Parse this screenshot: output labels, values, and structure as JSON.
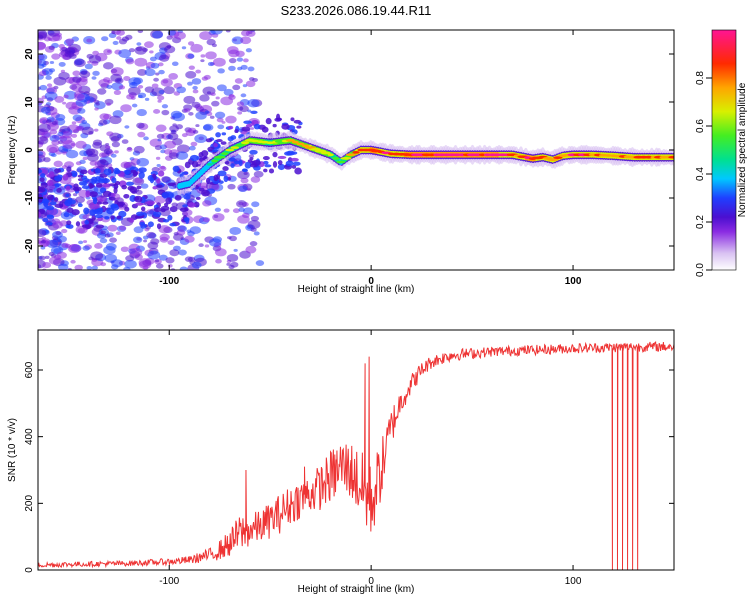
{
  "figure_title": "S233.2026.086.19.44.R11",
  "colors": {
    "snr_line": "#ee3333",
    "colormap": [
      "#ffffff",
      "#d9c2f2",
      "#8a2be2",
      "#4b0fd0",
      "#1f3fff",
      "#00c8ff",
      "#00e090",
      "#44ee22",
      "#d8f000",
      "#ffa500",
      "#ff2a00",
      "#ff1493"
    ]
  },
  "chart_data": [
    {
      "type": "heatmap",
      "title": "",
      "xlabel": "Height of straight line (km)",
      "ylabel": "Frequency (Hz)",
      "xlim": [
        -165,
        150
      ],
      "ylim": [
        -25,
        25
      ],
      "xticks": [
        -100,
        0,
        100
      ],
      "xtick_labels": [
        "-100",
        "0",
        "100"
      ],
      "yticks": [
        -20,
        -10,
        0,
        10,
        20
      ],
      "ytick_labels": [
        "-20",
        "-10",
        "0",
        "10",
        "20"
      ],
      "colorbar": {
        "label": "Normalized spectral amplitude",
        "range": [
          0.0,
          1.0
        ],
        "ticks": [
          0.0,
          0.2,
          0.4,
          0.6,
          0.8
        ],
        "tick_labels": [
          "0.0",
          "0.2",
          "0.4",
          "0.6",
          "0.8"
        ]
      },
      "ridge": {
        "description_free_points": true,
        "x": [
          -100,
          -90,
          -80,
          -70,
          -60,
          -50,
          -40,
          -30,
          -20,
          -15,
          -10,
          -5,
          0,
          10,
          20,
          40,
          60,
          70,
          80,
          85,
          90,
          95,
          100,
          110,
          120,
          130,
          150
        ],
        "frequency": [
          -8,
          -7,
          -3,
          0,
          2,
          1.5,
          2,
          0.5,
          -1,
          -2.5,
          -1,
          0,
          0,
          -0.8,
          -1,
          -1,
          -1,
          -1,
          -1.8,
          -1.5,
          -2,
          -1.2,
          -1,
          -1,
          -1.2,
          -1.5,
          -1.5
        ],
        "amplitude": [
          0.4,
          0.45,
          0.5,
          0.55,
          0.65,
          0.6,
          0.7,
          0.75,
          0.6,
          0.5,
          0.7,
          0.8,
          0.9,
          0.85,
          0.9,
          0.95,
          0.9,
          0.85,
          0.9,
          0.85,
          0.8,
          0.75,
          0.85,
          0.85,
          0.8,
          0.85,
          0.8
        ]
      }
    },
    {
      "type": "line",
      "title": "",
      "xlabel": "Height of straight line (km)",
      "ylabel": "SNR (10 * v/v)",
      "xlim": [
        -165,
        150
      ],
      "ylim": [
        0,
        720
      ],
      "xticks": [
        -100,
        0,
        100
      ],
      "xtick_labels": [
        "-100",
        "0",
        "100"
      ],
      "yticks": [
        0,
        200,
        400,
        600
      ],
      "ytick_labels": [
        "0",
        "200",
        "400",
        "600"
      ],
      "series": [
        {
          "name": "SNR",
          "trend_x": [
            -165,
            -140,
            -120,
            -100,
            -90,
            -80,
            -75,
            -70,
            -65,
            -60,
            -55,
            -50,
            -45,
            -40,
            -35,
            -30,
            -25,
            -20,
            -15,
            -10,
            -5,
            0,
            5,
            10,
            15,
            20,
            25,
            30,
            40,
            60,
            80,
            100,
            120,
            140,
            150
          ],
          "trend_y": [
            15,
            18,
            20,
            25,
            30,
            45,
            60,
            80,
            110,
            120,
            130,
            150,
            170,
            195,
            215,
            230,
            250,
            280,
            310,
            300,
            250,
            200,
            300,
            430,
            510,
            560,
            600,
            625,
            645,
            655,
            660,
            665,
            668,
            670,
            670
          ],
          "noise_amplitude": [
            8,
            8,
            8,
            10,
            12,
            20,
            30,
            40,
            60,
            50,
            50,
            55,
            60,
            60,
            60,
            60,
            70,
            80,
            90,
            90,
            110,
            120,
            90,
            60,
            40,
            30,
            25,
            20,
            18,
            15,
            15,
            15,
            15,
            15,
            15
          ],
          "spike_x": [
            -62,
            -33,
            -17,
            -10,
            -3,
            -1
          ],
          "spike_y": [
            300,
            310,
            330,
            330,
            620,
            640
          ],
          "dropout_x": [
            119.5,
            122,
            124.5,
            127,
            129.5,
            132
          ],
          "dropout_y": [
            0,
            0,
            0,
            0,
            0,
            0
          ]
        }
      ]
    }
  ]
}
